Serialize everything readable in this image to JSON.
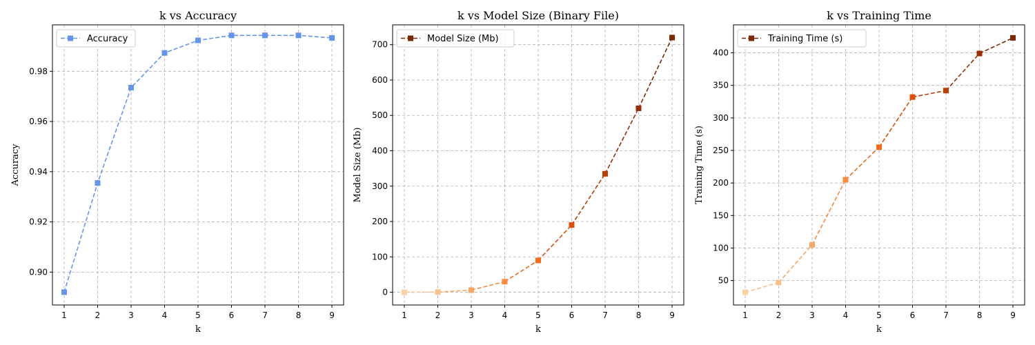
{
  "chart_data": [
    {
      "type": "line",
      "title": "k vs Accuracy",
      "xlabel": "k",
      "ylabel": "Accuracy",
      "x": [
        1,
        2,
        3,
        4,
        5,
        6,
        7,
        8,
        9
      ],
      "xticks": [
        "1",
        "2",
        "3",
        "4",
        "5",
        "6",
        "7",
        "8",
        "9"
      ],
      "yticks": [
        0.9,
        0.92,
        0.94,
        0.96,
        0.98
      ],
      "ytick_labels": [
        "0.90",
        "0.92",
        "0.94",
        "0.96",
        "0.98"
      ],
      "xlim": [
        0.65,
        9.35
      ],
      "ylim": [
        0.8869,
        0.9985
      ],
      "grid": true,
      "legend_position": "top-left",
      "series": [
        {
          "name": "Accuracy",
          "values": [
            0.892,
            0.9355,
            0.9735,
            0.9873,
            0.9923,
            0.9943,
            0.9943,
            0.9943,
            0.9933
          ],
          "color": "#6495ED",
          "line_style": "dashed",
          "marker": "square"
        }
      ]
    },
    {
      "type": "line",
      "title": "k vs Model Size (Binary File)",
      "xlabel": "k",
      "ylabel": "Model Size (Mb)",
      "x": [
        1,
        2,
        3,
        4,
        5,
        6,
        7,
        8,
        9
      ],
      "xticks": [
        "1",
        "2",
        "3",
        "4",
        "5",
        "6",
        "7",
        "8",
        "9"
      ],
      "yticks": [
        0,
        100,
        200,
        300,
        400,
        500,
        600,
        700
      ],
      "ytick_labels": [
        "0",
        "100",
        "200",
        "300",
        "400",
        "500",
        "600",
        "700"
      ],
      "xlim": [
        0.65,
        9.35
      ],
      "ylim": [
        -36,
        756
      ],
      "grid": true,
      "legend_position": "top-left",
      "series": [
        {
          "name": "Model Size (Mb)",
          "values": [
            0,
            0.5,
            6,
            30,
            90,
            190,
            335,
            520,
            720
          ],
          "legend_color": "#7f2704",
          "line_style": "dashed",
          "marker": "square",
          "point_colors": [
            "#fdd0a2",
            "#fdc08c",
            "#fda660",
            "#f98b3a",
            "#f06c1c",
            "#dd4d08",
            "#bc3c03",
            "#982f03",
            "#7f2704"
          ]
        }
      ]
    },
    {
      "type": "line",
      "title": "k vs Training Time",
      "xlabel": "k",
      "ylabel": "Training Time (s)",
      "x": [
        1,
        2,
        3,
        4,
        5,
        6,
        7,
        8,
        9
      ],
      "xticks": [
        "1",
        "2",
        "3",
        "4",
        "5",
        "6",
        "7",
        "8",
        "9"
      ],
      "yticks": [
        50,
        100,
        150,
        200,
        250,
        300,
        350,
        400
      ],
      "ytick_labels": [
        "50",
        "100",
        "150",
        "200",
        "250",
        "300",
        "350",
        "400"
      ],
      "xlim": [
        0.65,
        9.35
      ],
      "ylim": [
        12.5,
        443
      ],
      "grid": true,
      "legend_position": "top-left",
      "series": [
        {
          "name": "Training Time (s)",
          "values": [
            32,
            47,
            105,
            205,
            255,
            332,
            342,
            399,
            423
          ],
          "legend_color": "#7f2704",
          "line_style": "dashed",
          "marker": "square",
          "point_colors": [
            "#fdd0a2",
            "#fdc08c",
            "#fda660",
            "#f98b3a",
            "#f06c1c",
            "#dd4d08",
            "#bc3c03",
            "#982f03",
            "#7f2704"
          ]
        }
      ]
    }
  ]
}
